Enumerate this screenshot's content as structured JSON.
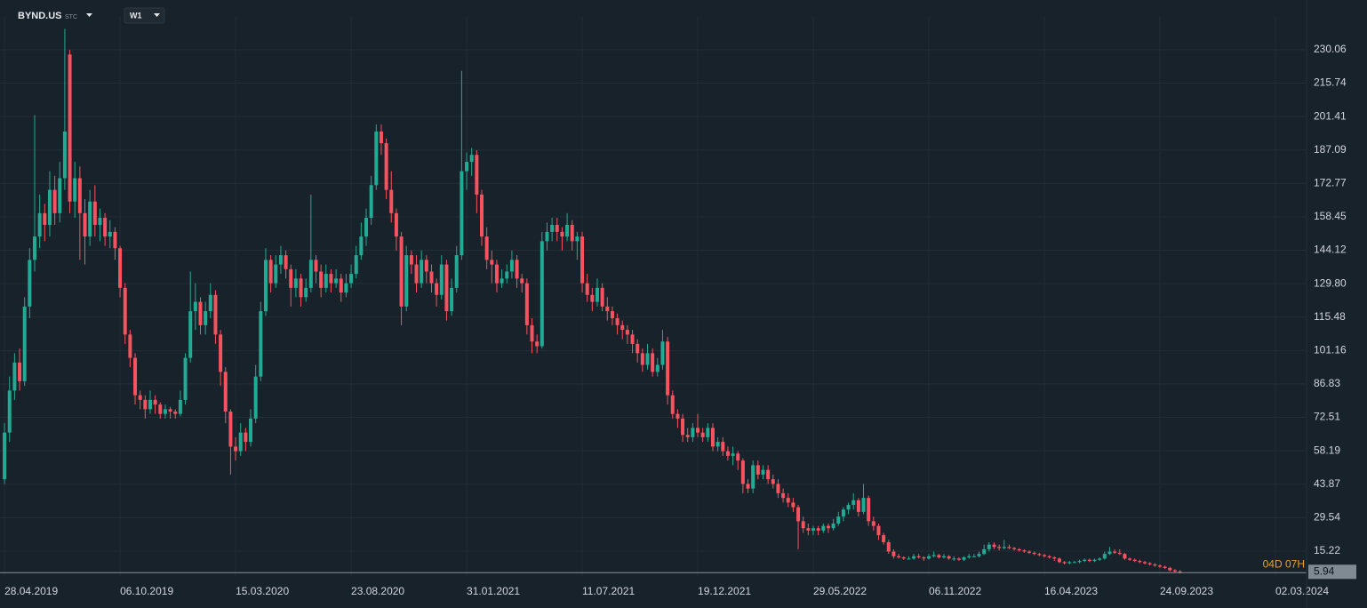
{
  "chart_data": {
    "type": "candlestick",
    "symbol": "BYND.US",
    "exchange": "STC",
    "timeframe": "W1",
    "colors": {
      "up": "#22ab94",
      "down": "#f7525f",
      "background": "#18222a",
      "grid": "#222d35"
    },
    "grid": true,
    "ylim": [
      4.53,
      244.5
    ],
    "yticks": [
      230.06,
      215.74,
      201.41,
      187.09,
      172.77,
      158.45,
      144.12,
      {
        "value": 129.8,
        "label": "129.80"
      },
      115.48,
      101.16,
      86.83,
      72.51,
      58.19,
      43.87,
      29.54,
      15.22
    ],
    "xlim": [
      -0.9,
      259.2
    ],
    "xticks": [
      {
        "value": 0,
        "label": "28.04.2019"
      },
      {
        "value": 23,
        "label": "06.10.2019"
      },
      {
        "value": 46,
        "label": "15.03.2020"
      },
      {
        "value": 69,
        "label": "23.08.2020"
      },
      {
        "value": 92,
        "label": "31.01.2021"
      },
      {
        "value": 115,
        "label": "11.07.2021"
      },
      {
        "value": 138,
        "label": "19.12.2021"
      },
      {
        "value": 161,
        "label": "29.05.2022"
      },
      {
        "value": 184,
        "label": "06.11.2022"
      },
      {
        "value": 207,
        "label": "16.04.2023"
      },
      {
        "value": 230,
        "label": "24.09.2023"
      },
      {
        "value": 253,
        "label": "02.03.2024"
      }
    ],
    "last_price": 5.94,
    "countdown": "04D 07H",
    "ohlc": [
      [
        46,
        70,
        44,
        66
      ],
      [
        66,
        90,
        62,
        84
      ],
      [
        84,
        100,
        80,
        96
      ],
      [
        96,
        102,
        84,
        88
      ],
      [
        88,
        124,
        86,
        120
      ],
      [
        120,
        145,
        115,
        140
      ],
      [
        140,
        202,
        135,
        150
      ],
      [
        150,
        168,
        145,
        160
      ],
      [
        160,
        164,
        148,
        155
      ],
      [
        155,
        178,
        150,
        170
      ],
      [
        170,
        176,
        155,
        160
      ],
      [
        160,
        182,
        156,
        175
      ],
      [
        175,
        239,
        170,
        195
      ],
      [
        228,
        230,
        160,
        165
      ],
      [
        165,
        182,
        158,
        175
      ],
      [
        175,
        180,
        140,
        160
      ],
      [
        160,
        166,
        138,
        150
      ],
      [
        150,
        170,
        146,
        165
      ],
      [
        165,
        172,
        150,
        155
      ],
      [
        155,
        162,
        148,
        158
      ],
      [
        158,
        160,
        146,
        150
      ],
      [
        150,
        157,
        145,
        152
      ],
      [
        152,
        154,
        140,
        145
      ],
      [
        145,
        146,
        124,
        128
      ],
      [
        128,
        130,
        104,
        108
      ],
      [
        108,
        110,
        94,
        98
      ],
      [
        98,
        100,
        78,
        82
      ],
      [
        82,
        84,
        76,
        80
      ],
      [
        80,
        82,
        72,
        76
      ],
      [
        76,
        84,
        74,
        80
      ],
      [
        80,
        82,
        74,
        78
      ],
      [
        78,
        79,
        72,
        74
      ],
      [
        74,
        78,
        72,
        76
      ],
      [
        76,
        77,
        72,
        75
      ],
      [
        75,
        76,
        72,
        74
      ],
      [
        74,
        84,
        73,
        80
      ],
      [
        80,
        100,
        78,
        98
      ],
      [
        98,
        135,
        96,
        118
      ],
      [
        118,
        130,
        110,
        122
      ],
      [
        122,
        124,
        108,
        112
      ],
      [
        112,
        122,
        108,
        118
      ],
      [
        118,
        130,
        115,
        125
      ],
      [
        125,
        127,
        104,
        108
      ],
      [
        108,
        110,
        86,
        92
      ],
      [
        92,
        94,
        70,
        75
      ],
      [
        75,
        76,
        48,
        60
      ],
      [
        60,
        64,
        54,
        58
      ],
      [
        58,
        70,
        56,
        66
      ],
      [
        66,
        68,
        58,
        62
      ],
      [
        62,
        76,
        60,
        72
      ],
      [
        72,
        95,
        70,
        90
      ],
      [
        90,
        122,
        88,
        118
      ],
      [
        118,
        145,
        116,
        140
      ],
      [
        140,
        142,
        126,
        130
      ],
      [
        130,
        142,
        128,
        138
      ],
      [
        138,
        146,
        134,
        142
      ],
      [
        142,
        144,
        132,
        136
      ],
      [
        136,
        138,
        120,
        128
      ],
      [
        128,
        136,
        124,
        132
      ],
      [
        132,
        134,
        120,
        124
      ],
      [
        124,
        132,
        122,
        128
      ],
      [
        128,
        168,
        126,
        140
      ],
      [
        140,
        142,
        130,
        135
      ],
      [
        135,
        138,
        124,
        128
      ],
      [
        128,
        138,
        126,
        134
      ],
      [
        134,
        136,
        126,
        130
      ],
      [
        130,
        136,
        128,
        132
      ],
      [
        132,
        134,
        122,
        126
      ],
      [
        126,
        134,
        124,
        130
      ],
      [
        130,
        138,
        128,
        134
      ],
      [
        134,
        146,
        132,
        142
      ],
      [
        142,
        156,
        140,
        150
      ],
      [
        150,
        162,
        146,
        158
      ],
      [
        158,
        176,
        155,
        172
      ],
      [
        172,
        198,
        170,
        195
      ],
      [
        195,
        198,
        185,
        190
      ],
      [
        190,
        192,
        166,
        170
      ],
      [
        170,
        178,
        156,
        160
      ],
      [
        160,
        162,
        144,
        150
      ],
      [
        150,
        152,
        112,
        120
      ],
      [
        120,
        146,
        118,
        142
      ],
      [
        142,
        144,
        134,
        138
      ],
      [
        138,
        142,
        126,
        130
      ],
      [
        130,
        144,
        128,
        140
      ],
      [
        140,
        142,
        130,
        135
      ],
      [
        135,
        138,
        126,
        130
      ],
      [
        130,
        132,
        120,
        125
      ],
      [
        125,
        142,
        123,
        138
      ],
      [
        138,
        140,
        114,
        118
      ],
      [
        118,
        132,
        116,
        128
      ],
      [
        128,
        146,
        126,
        142
      ],
      [
        142,
        221,
        140,
        178
      ],
      [
        178,
        186,
        170,
        182
      ],
      [
        182,
        188,
        176,
        185
      ],
      [
        185,
        187,
        160,
        168
      ],
      [
        168,
        170,
        146,
        150
      ],
      [
        150,
        154,
        136,
        140
      ],
      [
        140,
        144,
        130,
        138
      ],
      [
        138,
        140,
        126,
        130
      ],
      [
        130,
        136,
        128,
        132
      ],
      [
        132,
        138,
        130,
        135
      ],
      [
        135,
        144,
        132,
        140
      ],
      [
        140,
        142,
        128,
        132
      ],
      [
        132,
        134,
        126,
        130
      ],
      [
        130,
        132,
        108,
        112
      ],
      [
        112,
        115,
        100,
        105
      ],
      [
        105,
        108,
        100,
        103
      ],
      [
        103,
        152,
        102,
        148
      ],
      [
        148,
        156,
        144,
        152
      ],
      [
        152,
        158,
        148,
        155
      ],
      [
        155,
        158,
        148,
        152
      ],
      [
        152,
        154,
        144,
        150
      ],
      [
        150,
        160,
        148,
        155
      ],
      [
        155,
        157,
        144,
        148
      ],
      [
        148,
        152,
        140,
        150
      ],
      [
        150,
        152,
        126,
        130
      ],
      [
        130,
        134,
        122,
        125
      ],
      [
        125,
        128,
        118,
        122
      ],
      [
        122,
        132,
        120,
        128
      ],
      [
        128,
        130,
        118,
        120
      ],
      [
        120,
        124,
        114,
        118
      ],
      [
        118,
        120,
        112,
        115
      ],
      [
        115,
        117,
        108,
        112
      ],
      [
        112,
        114,
        106,
        110
      ],
      [
        110,
        112,
        104,
        108
      ],
      [
        108,
        110,
        100,
        104
      ],
      [
        104,
        106,
        96,
        100
      ],
      [
        100,
        102,
        92,
        95
      ],
      [
        95,
        104,
        93,
        100
      ],
      [
        100,
        102,
        90,
        92
      ],
      [
        92,
        98,
        90,
        95
      ],
      [
        95,
        110,
        93,
        105
      ],
      [
        105,
        107,
        78,
        82
      ],
      [
        82,
        84,
        72,
        74
      ],
      [
        74,
        76,
        68,
        72
      ],
      [
        72,
        74,
        62,
        65
      ],
      [
        65,
        68,
        62,
        64
      ],
      [
        64,
        70,
        62,
        68
      ],
      [
        68,
        74,
        64,
        66
      ],
      [
        66,
        68,
        62,
        64
      ],
      [
        64,
        70,
        62,
        68
      ],
      [
        68,
        70,
        58,
        60
      ],
      [
        60,
        64,
        58,
        62
      ],
      [
        62,
        64,
        56,
        58
      ],
      [
        58,
        60,
        54,
        56
      ],
      [
        56,
        60,
        52,
        57
      ],
      [
        57,
        58,
        50,
        54
      ],
      [
        54,
        55,
        40,
        44
      ],
      [
        44,
        46,
        40,
        42
      ],
      [
        42,
        54,
        40,
        52
      ],
      [
        52,
        54,
        46,
        48
      ],
      [
        48,
        52,
        46,
        50
      ],
      [
        50,
        52,
        44,
        46
      ],
      [
        46,
        48,
        42,
        44
      ],
      [
        44,
        46,
        38,
        40
      ],
      [
        40,
        42,
        36,
        38
      ],
      [
        38,
        40,
        34,
        36
      ],
      [
        36,
        38,
        32,
        34
      ],
      [
        34,
        35,
        16,
        28
      ],
      [
        28,
        30,
        23,
        25
      ],
      [
        25,
        27,
        22,
        24
      ],
      [
        24,
        26,
        22,
        25
      ],
      [
        25,
        26,
        22,
        24
      ],
      [
        24,
        27,
        23,
        26
      ],
      [
        26,
        27,
        23,
        25
      ],
      [
        25,
        29,
        24,
        27
      ],
      [
        27,
        32,
        26,
        30
      ],
      [
        30,
        34,
        28,
        33
      ],
      [
        33,
        36,
        31,
        35
      ],
      [
        35,
        40,
        33,
        37
      ],
      [
        37,
        38,
        30,
        32
      ],
      [
        32,
        44,
        31,
        38
      ],
      [
        38,
        39,
        26,
        28
      ],
      [
        28,
        30,
        24,
        26
      ],
      [
        26,
        27,
        20,
        22
      ],
      [
        22,
        23,
        18,
        19
      ],
      [
        19,
        20,
        14,
        15
      ],
      [
        15,
        16,
        12,
        13
      ],
      [
        13,
        14,
        12,
        12.5
      ],
      [
        12.5,
        13,
        11.5,
        12
      ],
      [
        12,
        13,
        11.5,
        12
      ],
      [
        12,
        14,
        11.5,
        13
      ],
      [
        13,
        14,
        12,
        12.5
      ],
      [
        12.5,
        13,
        11,
        12
      ],
      [
        12,
        14,
        11.5,
        13
      ],
      [
        13,
        15,
        12.5,
        13.5
      ],
      [
        13.5,
        14,
        12,
        12.5
      ],
      [
        12.5,
        14,
        12,
        13
      ],
      [
        13,
        13.5,
        11.5,
        12
      ],
      [
        12,
        13,
        11,
        12
      ],
      [
        12,
        12.5,
        11,
        11.5
      ],
      [
        11.5,
        13,
        11,
        12.5
      ],
      [
        12.5,
        14,
        12,
        13
      ],
      [
        13,
        14,
        12.5,
        13
      ],
      [
        13,
        15,
        12.5,
        14
      ],
      [
        14,
        18,
        13.5,
        16
      ],
      [
        16,
        19,
        15,
        18
      ],
      [
        18,
        19,
        16,
        17
      ],
      [
        17,
        18,
        15.5,
        16.5
      ],
      [
        16.5,
        20,
        16,
        17
      ],
      [
        17,
        18,
        16,
        16.5
      ],
      [
        16.5,
        17,
        15.5,
        16
      ],
      [
        16,
        16.5,
        15,
        15.5
      ],
      [
        15.5,
        16,
        14.5,
        15
      ],
      [
        15,
        15.5,
        14,
        14.5
      ],
      [
        14.5,
        15,
        13.5,
        14
      ],
      [
        14,
        14.5,
        13,
        13.5
      ],
      [
        13.5,
        14,
        12.5,
        13
      ],
      [
        13,
        13.5,
        12,
        12.5
      ],
      [
        12.5,
        13,
        11,
        12
      ],
      [
        12,
        12.5,
        10,
        10.5
      ],
      [
        10.5,
        11,
        9.5,
        10
      ],
      [
        10,
        11,
        9.5,
        10.5
      ],
      [
        10.5,
        11,
        10,
        10.5
      ],
      [
        10.5,
        11.5,
        10,
        11
      ],
      [
        11,
        12,
        10.5,
        11.5
      ],
      [
        11.5,
        12,
        10.5,
        11
      ],
      [
        11,
        12,
        10.5,
        11.5
      ],
      [
        11.5,
        12.5,
        11,
        12
      ],
      [
        12,
        15,
        11.5,
        14
      ],
      [
        14,
        17,
        13.5,
        15
      ],
      [
        15,
        16,
        14,
        14.5
      ],
      [
        14.5,
        16,
        13.5,
        14
      ],
      [
        14,
        14.5,
        11.5,
        12
      ],
      [
        12,
        12.5,
        11,
        11.5
      ],
      [
        11.5,
        12,
        10.5,
        11
      ],
      [
        11,
        11.5,
        10,
        10.5
      ],
      [
        10.5,
        11,
        9.5,
        10
      ],
      [
        10,
        10.5,
        9,
        9.5
      ],
      [
        9.5,
        10,
        8.5,
        9
      ],
      [
        9,
        9.5,
        8,
        8.5
      ],
      [
        8.5,
        9,
        7.5,
        8
      ],
      [
        8,
        8.5,
        6.5,
        7
      ],
      [
        7,
        7.5,
        6,
        6.5
      ],
      [
        6.5,
        7,
        5.6,
        5.94
      ]
    ]
  }
}
